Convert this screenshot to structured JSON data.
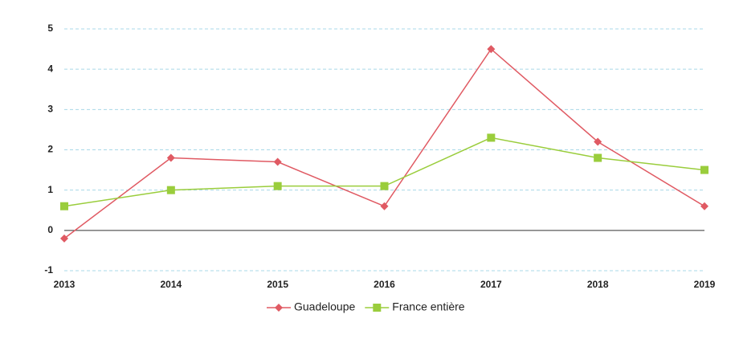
{
  "chart_data": {
    "type": "line",
    "categories": [
      "2013",
      "2014",
      "2015",
      "2016",
      "2017",
      "2018",
      "2019"
    ],
    "series": [
      {
        "name": "Guadeloupe",
        "color": "#e05a63",
        "marker": "diamond",
        "values": [
          -0.2,
          1.8,
          1.7,
          0.6,
          4.5,
          2.2,
          0.6
        ]
      },
      {
        "name": "France entière",
        "color": "#9acd3c",
        "marker": "square",
        "values": [
          0.6,
          1.0,
          1.1,
          1.1,
          2.3,
          1.8,
          1.5
        ]
      }
    ],
    "ylim": [
      -1,
      5
    ],
    "yticks": [
      -1,
      0,
      1,
      2,
      3,
      4,
      5
    ],
    "grid": true,
    "legend": "bottom"
  }
}
